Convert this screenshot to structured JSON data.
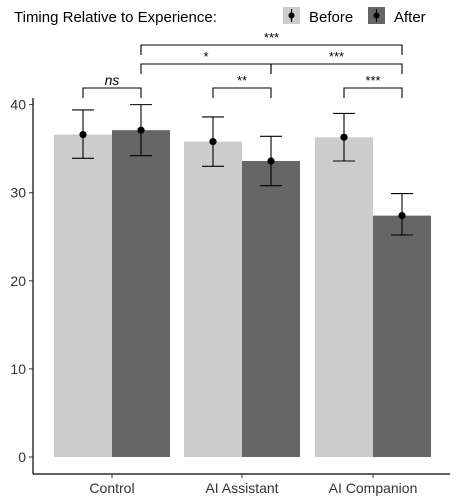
{
  "chart_data": {
    "type": "bar",
    "title": "",
    "xlabel": "",
    "ylabel": "",
    "ylim": [
      0,
      42
    ],
    "yticks": [
      0,
      10,
      20,
      30,
      40
    ],
    "grid": false,
    "categories": [
      "Control",
      "AI Assistant",
      "AI Companion"
    ],
    "legend": {
      "title": "Timing Relative to Experience:",
      "position": "top"
    },
    "series": [
      {
        "name": "Before",
        "color": "#cccccc",
        "values": [
          36.6,
          35.8,
          36.3
        ],
        "points": [
          36.6,
          35.8,
          36.3
        ],
        "error_low": [
          33.9,
          33.0,
          33.6
        ],
        "error_high": [
          39.4,
          38.6,
          39.0
        ]
      },
      {
        "name": "After",
        "color": "#666666",
        "values": [
          37.1,
          33.6,
          27.4
        ],
        "points": [
          37.1,
          33.6,
          27.4
        ],
        "error_low": [
          34.2,
          30.8,
          25.2
        ],
        "error_high": [
          40.0,
          36.4,
          29.9
        ]
      }
    ],
    "comparisons": [
      {
        "from": [
          0,
          0
        ],
        "to": [
          0,
          1
        ],
        "label": "ns"
      },
      {
        "from": [
          1,
          0
        ],
        "to": [
          1,
          1
        ],
        "label": "**"
      },
      {
        "from": [
          2,
          0
        ],
        "to": [
          2,
          1
        ],
        "label": "***"
      },
      {
        "from": [
          0,
          1
        ],
        "to": [
          1,
          1
        ],
        "label": "*"
      },
      {
        "from": [
          1,
          1
        ],
        "to": [
          2,
          1
        ],
        "label": "***"
      },
      {
        "from": [
          0,
          1
        ],
        "to": [
          2,
          1
        ],
        "label": "***"
      }
    ]
  }
}
